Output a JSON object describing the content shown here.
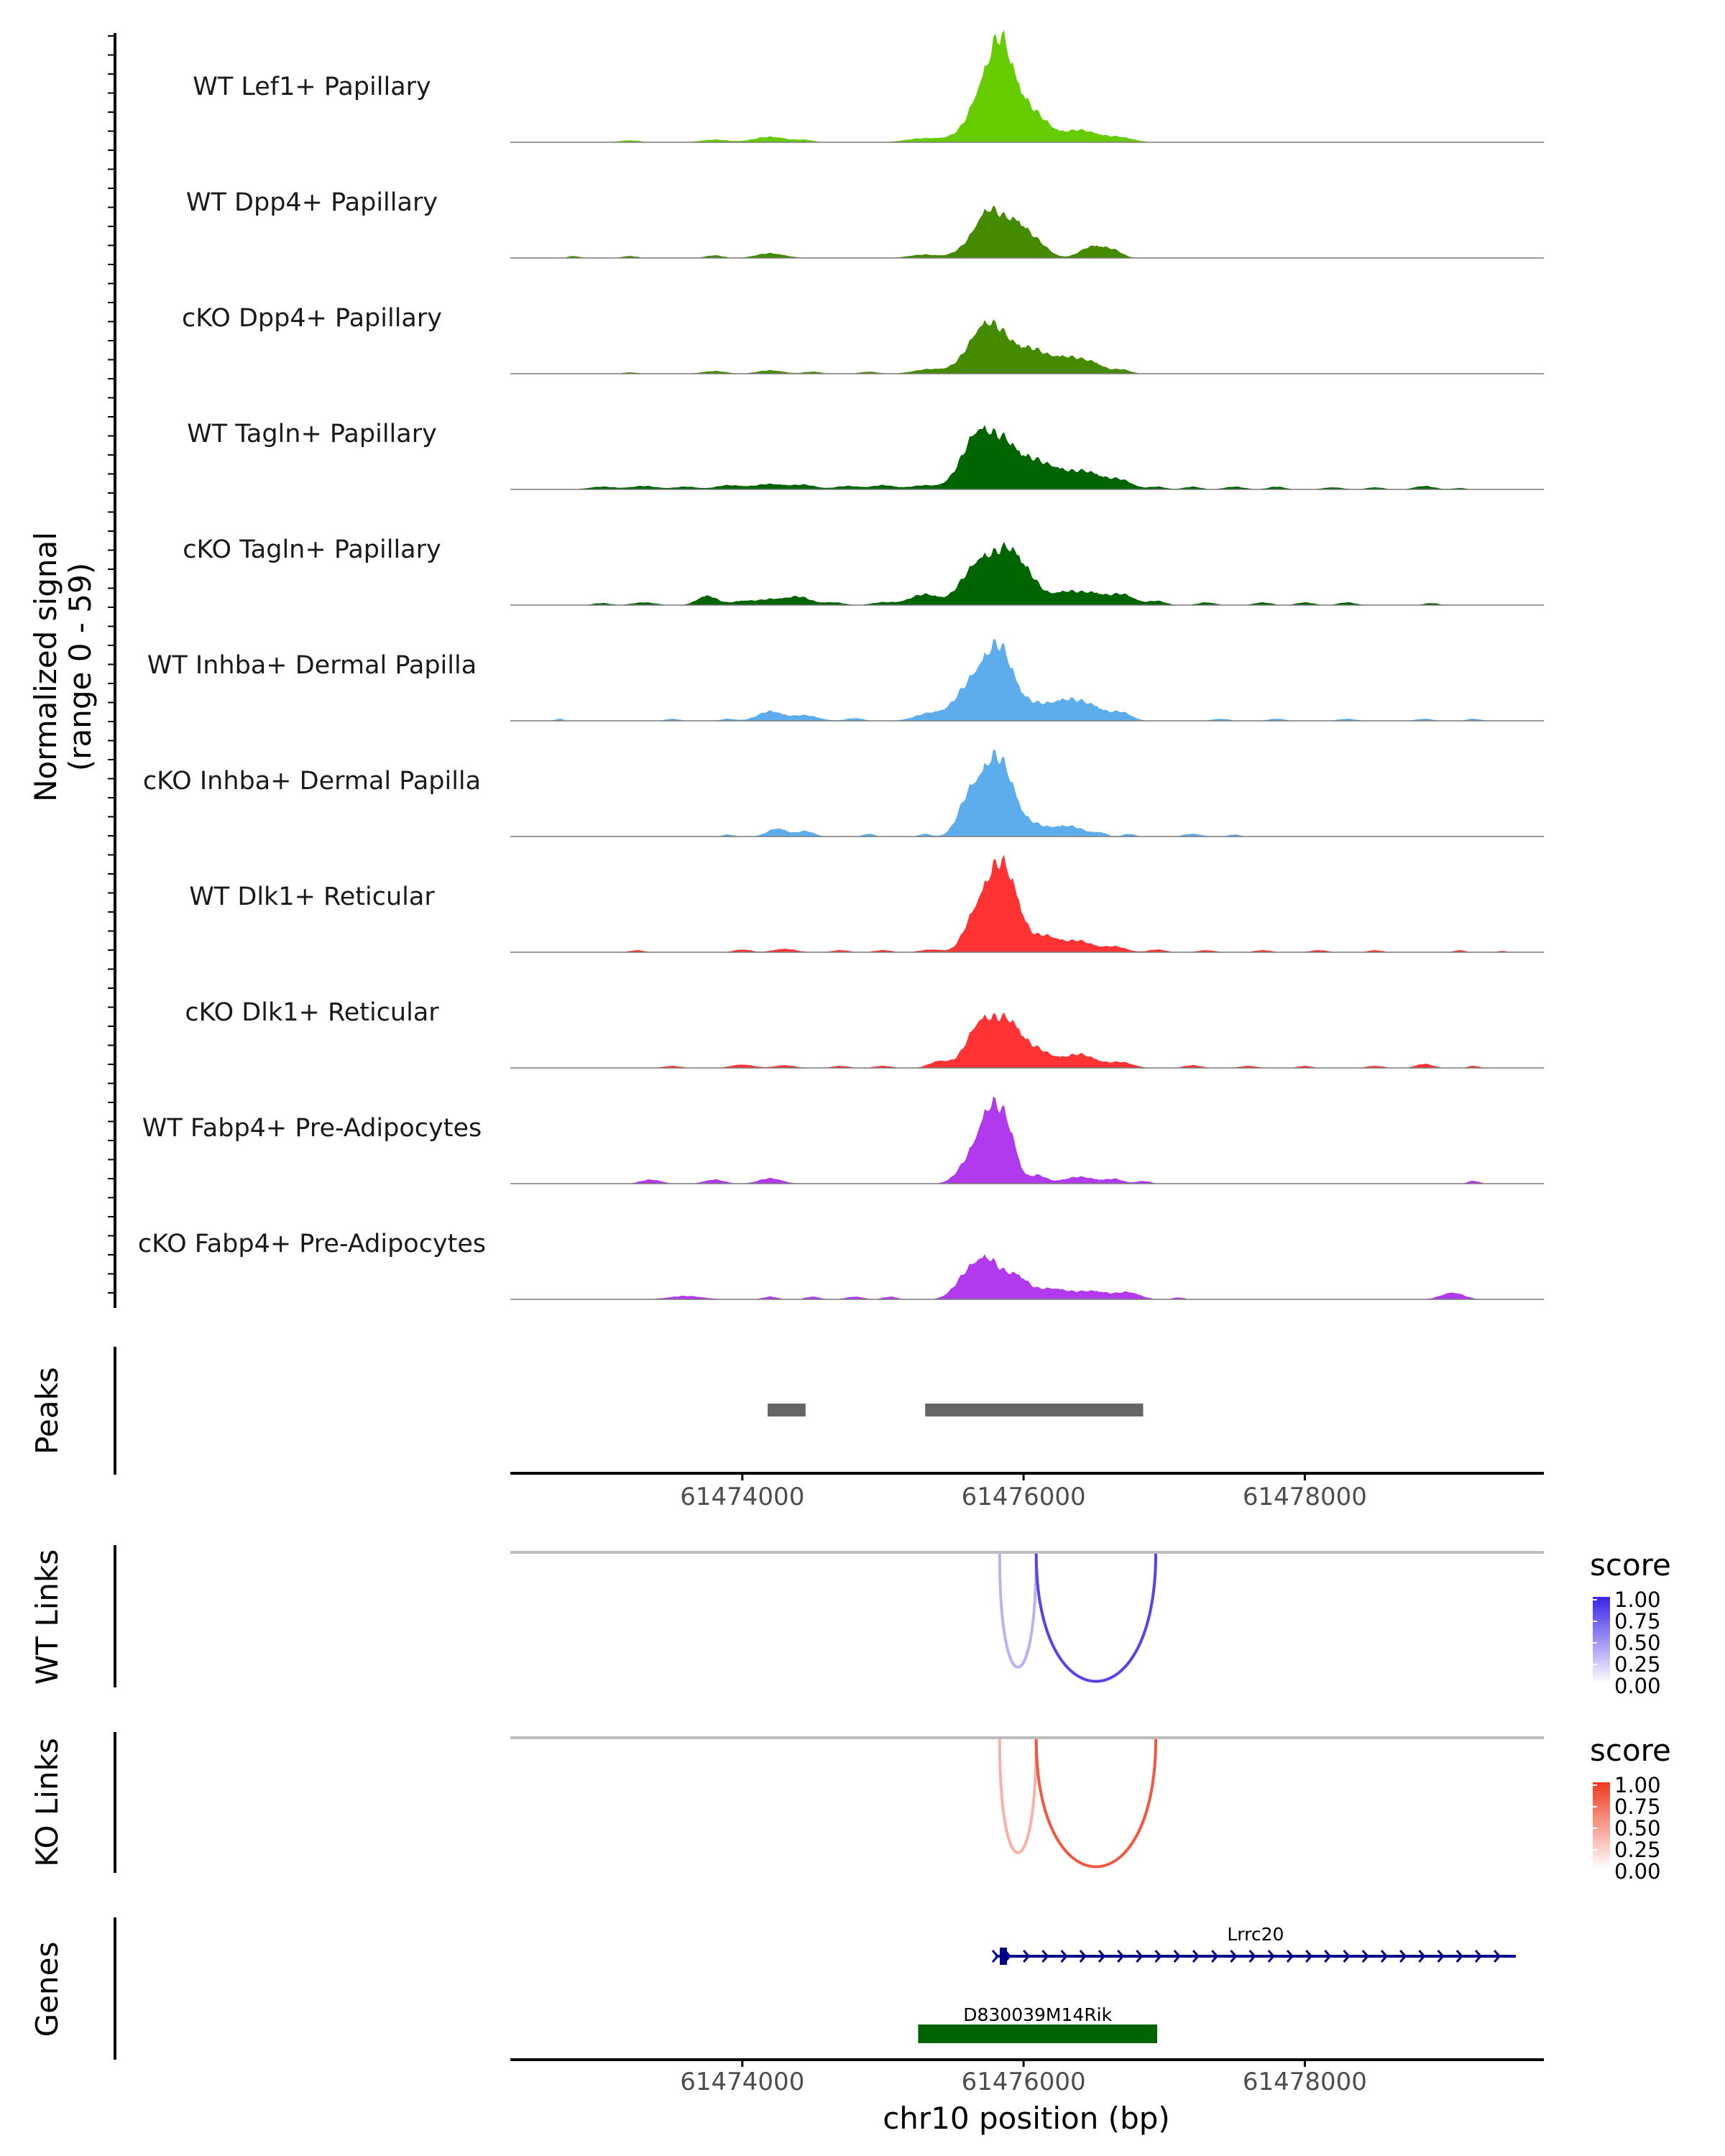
{
  "colors": {
    "lime": "#66CC00",
    "olive": "#458B00",
    "darkgreen": "#006400",
    "blue": "#5DADEC",
    "red": "#FF3333",
    "purple": "#B23AEE",
    "peaks": "#666666",
    "wt_link_high": "#3A22E8",
    "ko_link_high": "#F03A1E",
    "gene_blue": "#00008B",
    "gene_green": "#006400"
  },
  "chart_data": {
    "type": "area",
    "region": "chr10:61472300-61479700",
    "xlim": [
      61472350,
      61479700
    ],
    "xlabel": "chr10 position (bp)",
    "x_ticks": [
      61474000,
      61476000,
      61478000
    ],
    "x_tick_labels": [
      "61474000",
      "61476000",
      "61478000"
    ],
    "coverage_axis_title": [
      "Normalized signal",
      "(range 0 - 59)"
    ],
    "ylim": [
      0,
      59
    ],
    "tracks": [
      {
        "name": "WT Lef1+ Papillary",
        "color": "lime",
        "peaks": [
          [
            61473200,
            1.5,
            70
          ],
          [
            61473800,
            2,
            90
          ],
          [
            61474200,
            4,
            120
          ],
          [
            61474450,
            1.5,
            60
          ],
          [
            61475300,
            3,
            130
          ],
          [
            61475550,
            4,
            90
          ],
          [
            61475720,
            40,
            90
          ],
          [
            61475840,
            50,
            70
          ],
          [
            61475950,
            28,
            80
          ],
          [
            61476100,
            16,
            90
          ],
          [
            61476400,
            9,
            140
          ],
          [
            61476700,
            3,
            90
          ]
        ]
      },
      {
        "name": "WT Dpp4+ Papillary",
        "color": "olive",
        "peaks": [
          [
            61472800,
            1.5,
            40
          ],
          [
            61473200,
            1.5,
            50
          ],
          [
            61473800,
            2,
            60
          ],
          [
            61474200,
            3.5,
            100
          ],
          [
            61475300,
            2.5,
            110
          ],
          [
            61475550,
            3,
            70
          ],
          [
            61475750,
            35,
            100
          ],
          [
            61475950,
            22,
            80
          ],
          [
            61476100,
            10,
            80
          ],
          [
            61476500,
            9,
            90
          ],
          [
            61476650,
            4,
            60
          ]
        ]
      },
      {
        "name": "cKO Dpp4+ Papillary",
        "color": "olive",
        "peaks": [
          [
            61473200,
            1,
            50
          ],
          [
            61473800,
            2,
            80
          ],
          [
            61474200,
            2.5,
            90
          ],
          [
            61474500,
            1.5,
            60
          ],
          [
            61474900,
            1.5,
            60
          ],
          [
            61475350,
            3.5,
            120
          ],
          [
            61475550,
            4,
            70
          ],
          [
            61475700,
            30,
            90
          ],
          [
            61475850,
            22,
            90
          ],
          [
            61476050,
            16,
            100
          ],
          [
            61476300,
            12,
            120
          ],
          [
            61476500,
            6,
            80
          ],
          [
            61476700,
            3,
            60
          ]
        ]
      },
      {
        "name": "WT Tagln+ Papillary",
        "color": "darkgreen",
        "peaks": [
          [
            61473000,
            2,
            90
          ],
          [
            61473300,
            2.5,
            100
          ],
          [
            61473600,
            2,
            80
          ],
          [
            61473900,
            3,
            90
          ],
          [
            61474200,
            4,
            120
          ],
          [
            61474450,
            3,
            80
          ],
          [
            61474750,
            2.5,
            90
          ],
          [
            61475000,
            3,
            80
          ],
          [
            61475300,
            3,
            110
          ],
          [
            61475520,
            4,
            70
          ],
          [
            61475680,
            42,
            100
          ],
          [
            61475880,
            30,
            90
          ],
          [
            61476050,
            14,
            80
          ],
          [
            61476200,
            14,
            100
          ],
          [
            61476450,
            13,
            120
          ],
          [
            61476700,
            6,
            80
          ],
          [
            61476950,
            2,
            60
          ],
          [
            61477200,
            2,
            60
          ],
          [
            61477500,
            2,
            70
          ],
          [
            61477800,
            2,
            60
          ],
          [
            61478200,
            1.5,
            70
          ],
          [
            61478500,
            1.5,
            60
          ],
          [
            61478850,
            2.5,
            70
          ],
          [
            61479100,
            1,
            50
          ]
        ]
      },
      {
        "name": "cKO Tagln+ Papillary",
        "color": "darkgreen",
        "peaks": [
          [
            61473000,
            1.5,
            60
          ],
          [
            61473300,
            2,
            80
          ],
          [
            61473750,
            7,
            70
          ],
          [
            61474000,
            3,
            80
          ],
          [
            61474200,
            4,
            90
          ],
          [
            61474400,
            6,
            90
          ],
          [
            61474650,
            2,
            70
          ],
          [
            61475000,
            2,
            80
          ],
          [
            61475300,
            8,
            110
          ],
          [
            61475550,
            6,
            70
          ],
          [
            61475700,
            32,
            100
          ],
          [
            61475900,
            36,
            90
          ],
          [
            61476050,
            14,
            80
          ],
          [
            61476300,
            10,
            110
          ],
          [
            61476500,
            7,
            80
          ],
          [
            61476700,
            8,
            90
          ],
          [
            61476950,
            3,
            60
          ],
          [
            61477300,
            2,
            60
          ],
          [
            61477700,
            2,
            60
          ],
          [
            61478000,
            2,
            60
          ],
          [
            61478300,
            2,
            60
          ],
          [
            61478900,
            1.5,
            50
          ]
        ]
      },
      {
        "name": "WT Inhba+ Dermal Papilla",
        "color": "blue",
        "peaks": [
          [
            61472700,
            1.5,
            30
          ],
          [
            61473500,
            1.5,
            50
          ],
          [
            61473900,
            1.5,
            50
          ],
          [
            61474200,
            7,
            90
          ],
          [
            61474450,
            4,
            90
          ],
          [
            61474800,
            2,
            60
          ],
          [
            61475350,
            6,
            110
          ],
          [
            61475550,
            10,
            80
          ],
          [
            61475700,
            32,
            100
          ],
          [
            61475850,
            42,
            90
          ],
          [
            61476050,
            10,
            100
          ],
          [
            61476300,
            15,
            120
          ],
          [
            61476500,
            8,
            90
          ],
          [
            61476700,
            6,
            70
          ],
          [
            61477400,
            1.5,
            60
          ],
          [
            61477800,
            1.5,
            60
          ],
          [
            61478300,
            1.5,
            60
          ],
          [
            61478850,
            1.5,
            60
          ],
          [
            61479200,
            1.5,
            50
          ]
        ]
      },
      {
        "name": "cKO Inhba+ Dermal Papilla",
        "color": "blue",
        "peaks": [
          [
            61473900,
            1.5,
            40
          ],
          [
            61474250,
            6,
            70
          ],
          [
            61474450,
            4,
            60
          ],
          [
            61474900,
            2,
            40
          ],
          [
            61475300,
            2,
            40
          ],
          [
            61475620,
            30,
            80
          ],
          [
            61475780,
            48,
            80
          ],
          [
            61475900,
            28,
            70
          ],
          [
            61476050,
            8,
            80
          ],
          [
            61476300,
            8,
            130
          ],
          [
            61476550,
            2,
            40
          ],
          [
            61476750,
            2,
            40
          ],
          [
            61477200,
            2,
            60
          ],
          [
            61477500,
            1.5,
            40
          ]
        ]
      },
      {
        "name": "WT Dlk1+ Reticular",
        "color": "red",
        "peaks": [
          [
            61473250,
            1.5,
            50
          ],
          [
            61474000,
            2,
            60
          ],
          [
            61474300,
            2.5,
            80
          ],
          [
            61474700,
            1.5,
            60
          ],
          [
            61475000,
            1.5,
            60
          ],
          [
            61475350,
            2,
            80
          ],
          [
            61475600,
            7,
            60
          ],
          [
            61475720,
            36,
            90
          ],
          [
            61475850,
            46,
            80
          ],
          [
            61475950,
            20,
            70
          ],
          [
            61476150,
            12,
            100
          ],
          [
            61476400,
            8,
            100
          ],
          [
            61476650,
            4,
            80
          ],
          [
            61476950,
            2,
            60
          ],
          [
            61477300,
            1.5,
            60
          ],
          [
            61477700,
            1.5,
            60
          ],
          [
            61478100,
            1.5,
            60
          ],
          [
            61478500,
            1.5,
            50
          ],
          [
            61479100,
            1.5,
            40
          ],
          [
            61479400,
            1,
            30
          ]
        ]
      },
      {
        "name": "cKO Dlk1+ Reticular",
        "color": "red",
        "peaks": [
          [
            61473500,
            1.5,
            60
          ],
          [
            61474000,
            2.5,
            80
          ],
          [
            61474300,
            2,
            70
          ],
          [
            61474700,
            1.5,
            60
          ],
          [
            61475000,
            1.5,
            60
          ],
          [
            61475400,
            5,
            70
          ],
          [
            61475700,
            34,
            100
          ],
          [
            61475900,
            30,
            90
          ],
          [
            61476100,
            12,
            100
          ],
          [
            61476400,
            10,
            120
          ],
          [
            61476700,
            4,
            80
          ],
          [
            61477200,
            2,
            60
          ],
          [
            61477600,
            1.5,
            60
          ],
          [
            61478000,
            1.5,
            50
          ],
          [
            61478500,
            1.5,
            60
          ],
          [
            61478850,
            3,
            60
          ],
          [
            61479200,
            1.5,
            40
          ]
        ]
      },
      {
        "name": "WT Fabp4+ Pre-Adipocytes",
        "color": "purple",
        "peaks": [
          [
            61473350,
            3,
            70
          ],
          [
            61473800,
            3,
            70
          ],
          [
            61474200,
            4,
            80
          ],
          [
            61475600,
            12,
            80
          ],
          [
            61475770,
            55,
            90
          ],
          [
            61475900,
            24,
            60
          ],
          [
            61476100,
            6,
            60
          ],
          [
            61476400,
            5,
            120
          ],
          [
            61476650,
            3,
            60
          ],
          [
            61476850,
            2,
            50
          ],
          [
            61479200,
            2,
            40
          ]
        ]
      },
      {
        "name": "cKO Fabp4+ Pre-Adipocytes",
        "color": "purple",
        "peaks": [
          [
            61473600,
            2.5,
            120
          ],
          [
            61474200,
            2,
            50
          ],
          [
            61474500,
            2,
            50
          ],
          [
            61474800,
            2,
            60
          ],
          [
            61475050,
            2,
            50
          ],
          [
            61475600,
            16,
            90
          ],
          [
            61475750,
            26,
            90
          ],
          [
            61475950,
            16,
            80
          ],
          [
            61476200,
            8,
            120
          ],
          [
            61476500,
            6,
            110
          ],
          [
            61476750,
            5,
            80
          ],
          [
            61477100,
            1.5,
            40
          ],
          [
            61479050,
            5,
            80
          ]
        ]
      }
    ],
    "peak_regions": [
      {
        "start": 61474180,
        "end": 61474450
      },
      {
        "start": 61475300,
        "end": 61476850
      }
    ],
    "link_tracks": [
      {
        "label": "WT Links",
        "legend_title": "score",
        "high_color": "wt_link_high",
        "links": [
          {
            "start": 61475830,
            "end": 61476090,
            "score": 0.35
          },
          {
            "start": 61476090,
            "end": 61476940,
            "score": 0.85
          }
        ]
      },
      {
        "label": "KO Links",
        "legend_title": "score",
        "high_color": "ko_link_high",
        "links": [
          {
            "start": 61475830,
            "end": 61476090,
            "score": 0.4
          },
          {
            "start": 61476090,
            "end": 61476940,
            "score": 0.85
          }
        ]
      }
    ],
    "legend_ticks": [
      "1.00",
      "0.75",
      "0.50",
      "0.25",
      "0.00"
    ],
    "genes": [
      {
        "name": "Lrrc20",
        "start": 61475800,
        "end": 61479500,
        "strand": "+",
        "color": "gene_blue"
      },
      {
        "name": "D830039M14Rik",
        "start": 61475250,
        "end": 61476950,
        "strand": "",
        "color": "gene_green"
      }
    ],
    "panel_labels": {
      "peaks": "Peaks",
      "wt_links": "WT Links",
      "ko_links": "KO Links",
      "genes": "Genes"
    }
  }
}
